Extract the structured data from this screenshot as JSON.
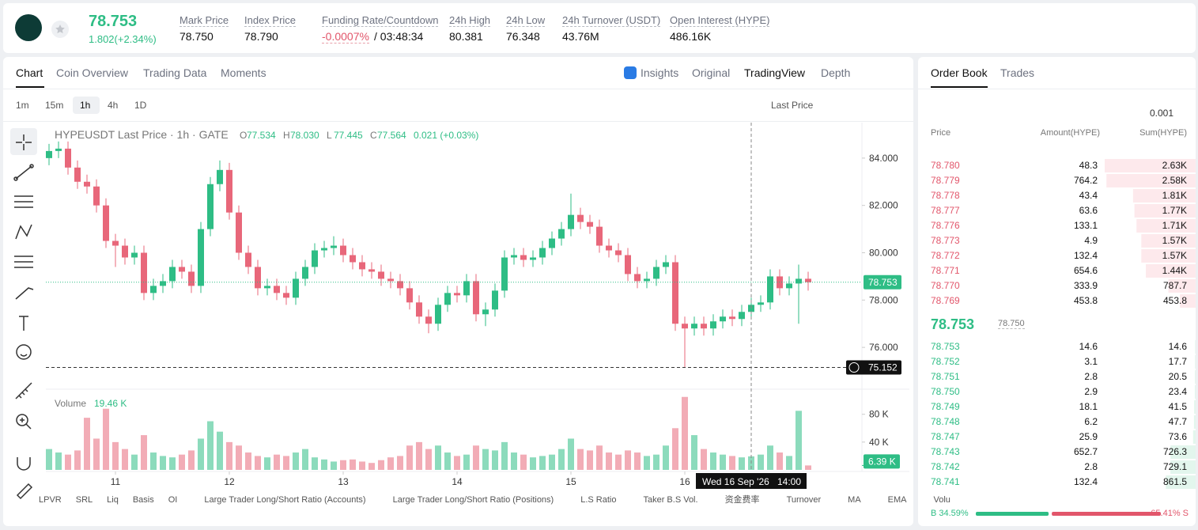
{
  "header": {
    "price": "78.753",
    "change": "1.802(+2.34%)",
    "stats": [
      {
        "label": "Mark Price",
        "value": "78.750"
      },
      {
        "label": "Index Price",
        "value": "78.790"
      },
      {
        "label": "Funding Rate/Countdown",
        "value": "-0.0007%",
        "extra": "/ 03:48:34"
      },
      {
        "label": "24h High",
        "value": "80.381"
      },
      {
        "label": "24h Low",
        "value": "76.348"
      },
      {
        "label": "24h Turnover (USDT)",
        "value": "43.76M"
      },
      {
        "label": "Open Interest (HYPE)",
        "value": "486.16K"
      }
    ]
  },
  "tabs": [
    "Chart",
    "Coin Overview",
    "Trading Data",
    "Moments"
  ],
  "view_tabs": [
    "Insights",
    "Original",
    "TradingView",
    "Depth"
  ],
  "intervals": [
    "1m",
    "15m",
    "1h",
    "4h",
    "1D"
  ],
  "price_type": "Last Price",
  "legend": {
    "title": "HYPEUSDT Last Price · 1h · GATE",
    "ohlc": [
      {
        "k": "O",
        "v": "77.534"
      },
      {
        "k": "H",
        "v": "78.030"
      },
      {
        "k": "L",
        "v": "77.445"
      },
      {
        "k": "C",
        "v": "77.564"
      }
    ],
    "change": "0.021 (+0.03%)"
  },
  "chart_data": {
    "type": "candlestick",
    "colors": {
      "up": "#2ebd85",
      "down": "#e8677a"
    },
    "open": [
      84.0,
      84.3,
      84.4,
      83.6,
      83.0,
      82.8,
      82.0,
      80.5,
      80.3,
      79.8,
      80.0,
      78.3,
      78.6,
      78.8,
      79.4,
      79.2,
      78.6,
      81.0,
      82.9,
      83.5,
      81.7,
      80.0,
      79.4,
      78.5,
      78.6,
      78.3,
      78.1,
      78.9,
      79.4,
      80.1,
      80.2,
      80.3,
      79.9,
      79.6,
      79.3,
      79.2,
      78.9,
      78.8,
      78.5,
      77.9,
      77.3,
      77.0,
      77.8,
      78.3,
      78.2,
      78.8,
      77.4,
      77.6,
      78.4,
      79.8,
      79.9,
      79.7,
      79.8,
      80.2,
      80.6,
      81.0,
      81.6,
      81.3,
      81.1,
      80.3,
      80.1,
      79.9,
      79.1,
      78.8,
      78.9,
      79.4,
      79.6,
      77.0,
      76.8,
      77.0,
      76.8,
      77.1,
      77.3,
      77.2,
      77.5,
      77.8,
      77.9,
      79.0,
      78.5,
      78.7,
      78.9
    ],
    "high": [
      84.6,
      84.7,
      84.7,
      83.9,
      83.3,
      83.1,
      82.3,
      80.8,
      80.6,
      80.3,
      80.3,
      78.9,
      79.1,
      79.7,
      79.7,
      79.5,
      81.3,
      83.2,
      83.9,
      83.8,
      82.0,
      80.3,
      79.7,
      78.9,
      78.9,
      78.6,
      79.2,
      79.7,
      80.4,
      80.5,
      80.7,
      80.6,
      80.2,
      79.9,
      79.6,
      79.5,
      79.2,
      79.1,
      78.8,
      78.2,
      77.6,
      78.1,
      78.6,
      78.6,
      79.1,
      79.1,
      77.9,
      78.7,
      80.1,
      80.2,
      80.2,
      80.1,
      80.5,
      80.9,
      81.3,
      82.5,
      81.9,
      81.6,
      81.4,
      80.6,
      80.4,
      80.2,
      79.4,
      79.2,
      79.7,
      79.9,
      79.9,
      77.3,
      77.3,
      77.3,
      77.4,
      77.6,
      77.6,
      77.8,
      78.1,
      78.2,
      79.3,
      79.3,
      79.0,
      79.5,
      79.2
    ],
    "low": [
      83.7,
      84.0,
      83.3,
      82.7,
      82.5,
      81.7,
      80.2,
      79.4,
      79.5,
      79.5,
      78.0,
      78.0,
      78.3,
      78.5,
      78.9,
      78.3,
      78.3,
      80.7,
      82.6,
      81.4,
      79.7,
      79.1,
      78.2,
      78.2,
      78.0,
      77.8,
      77.8,
      78.6,
      79.1,
      79.8,
      79.9,
      79.6,
      79.3,
      79.0,
      78.9,
      78.6,
      78.5,
      78.2,
      77.6,
      77.0,
      76.6,
      76.7,
      77.5,
      77.9,
      77.9,
      77.1,
      76.9,
      77.3,
      78.1,
      79.5,
      79.4,
      79.4,
      79.5,
      79.9,
      80.3,
      80.7,
      81.0,
      80.8,
      80.0,
      79.8,
      79.6,
      78.8,
      78.5,
      78.5,
      78.6,
      79.1,
      76.7,
      75.152,
      76.5,
      76.5,
      76.5,
      76.8,
      76.9,
      76.9,
      77.2,
      77.5,
      77.6,
      78.2,
      78.2,
      77.0,
      78.4
    ],
    "close": [
      84.3,
      84.4,
      83.6,
      83.0,
      82.8,
      82.0,
      80.5,
      80.3,
      79.8,
      80.0,
      78.3,
      78.6,
      78.8,
      79.4,
      79.2,
      78.6,
      81.0,
      82.9,
      83.5,
      81.7,
      80.0,
      79.4,
      78.5,
      78.6,
      78.3,
      78.1,
      78.9,
      79.4,
      80.1,
      80.2,
      80.3,
      79.9,
      79.6,
      79.3,
      79.2,
      78.9,
      78.8,
      78.5,
      77.9,
      77.3,
      77.0,
      77.8,
      78.3,
      78.2,
      78.8,
      77.4,
      77.6,
      78.4,
      79.8,
      79.9,
      79.7,
      79.8,
      80.2,
      80.6,
      81.0,
      81.6,
      81.3,
      81.1,
      80.3,
      80.1,
      79.9,
      79.1,
      78.8,
      78.9,
      79.4,
      79.6,
      77.0,
      76.8,
      77.0,
      76.8,
      77.1,
      77.3,
      77.2,
      77.5,
      77.8,
      77.9,
      79.0,
      78.5,
      78.7,
      78.9,
      78.753
    ],
    "ylim": [
      74.3,
      85.5
    ],
    "yticks": [
      {
        "value": 76,
        "label": "76.000"
      },
      {
        "value": 78,
        "label": "78.000"
      },
      {
        "value": 80,
        "label": "80.000"
      },
      {
        "value": 82,
        "label": "82.000"
      },
      {
        "value": 84,
        "label": "84.000"
      }
    ],
    "xticks": [
      {
        "value": 7,
        "label": "11"
      },
      {
        "value": 19,
        "label": "12"
      },
      {
        "value": 31,
        "label": "13"
      },
      {
        "value": 43,
        "label": "14"
      },
      {
        "value": 55,
        "label": "15"
      },
      {
        "value": 67,
        "label": "16"
      }
    ],
    "last_price": {
      "value": 78.753,
      "label": "78.753"
    },
    "low_marker": {
      "value": 75.152,
      "label": "75.152"
    },
    "crosshair": {
      "value": 74,
      "date": "Wed 16 Sep '26",
      "time": "14:00"
    },
    "volume": {
      "title": "Volume",
      "current": "19.46 K",
      "values": [
        30000,
        25000,
        22000,
        28000,
        75000,
        45000,
        88000,
        40000,
        30000,
        22000,
        50000,
        25000,
        20000,
        18000,
        22000,
        28000,
        45000,
        70000,
        55000,
        40000,
        35000,
        25000,
        20000,
        18000,
        22000,
        20000,
        25000,
        30000,
        18000,
        15000,
        12000,
        14000,
        15000,
        12000,
        10000,
        14000,
        18000,
        20000,
        35000,
        40000,
        30000,
        35000,
        25000,
        20000,
        22000,
        35000,
        30000,
        28000,
        40000,
        25000,
        22000,
        18000,
        20000,
        22000,
        30000,
        45000,
        30000,
        28000,
        35000,
        25000,
        22000,
        28000,
        25000,
        20000,
        22000,
        35000,
        60000,
        105000,
        50000,
        30000,
        25000,
        22000,
        20000,
        18000,
        19460,
        22000,
        35000,
        25000,
        20000,
        85000,
        6390
      ],
      "ylim": [
        0,
        107000
      ],
      "yticks": [
        {
          "value": 40000,
          "label": "40 K"
        },
        {
          "value": 80000,
          "label": "80 K"
        }
      ],
      "last": {
        "value": 6390,
        "label": "6.39 K"
      }
    }
  },
  "indicators": [
    "LPVR",
    "SRL",
    "Liq",
    "Basis",
    "OI",
    "Large Trader Long/Short Ratio (Accounts)",
    "Large Trader Long/Short Ratio (Positions)",
    "L.S Ratio",
    "Taker B.S Vol.",
    "资金费率",
    "Turnover",
    "MA",
    "EMA",
    "Volu"
  ],
  "order_book": {
    "tabs": [
      "Order Book",
      "Trades"
    ],
    "precision": "0.001",
    "headers": [
      "Price",
      "Amount(HYPE)",
      "Sum(HYPE)"
    ],
    "asks": [
      {
        "price": "78.780",
        "amount": 48.3,
        "sum": {
          "value": 2630,
          "label": "2.63K"
        }
      },
      {
        "price": "78.779",
        "amount": 764.2,
        "sum": {
          "value": 2580,
          "label": "2.58K"
        }
      },
      {
        "price": "78.778",
        "amount": 43.4,
        "sum": {
          "value": 1810,
          "label": "1.81K"
        }
      },
      {
        "price": "78.777",
        "amount": 63.6,
        "sum": {
          "value": 1770,
          "label": "1.77K"
        }
      },
      {
        "price": "78.776",
        "amount": 133.1,
        "sum": {
          "value": 1710,
          "label": "1.71K"
        }
      },
      {
        "price": "78.773",
        "amount": 4.9,
        "sum": {
          "value": 1570,
          "label": "1.57K"
        }
      },
      {
        "price": "78.772",
        "amount": 132.4,
        "sum": {
          "value": 1570,
          "label": "1.57K"
        }
      },
      {
        "price": "78.771",
        "amount": 654.6,
        "sum": {
          "value": 1440,
          "label": "1.44K"
        }
      },
      {
        "price": "78.770",
        "amount": 333.9,
        "sum": 787.7
      },
      {
        "price": "78.769",
        "amount": 453.8,
        "sum": 453.8
      }
    ],
    "last": "78.753",
    "mark": "78.750",
    "bids": [
      {
        "price": "78.753",
        "amount": 14.6,
        "sum": 14.6
      },
      {
        "price": "78.752",
        "amount": 3.1,
        "sum": 17.7
      },
      {
        "price": "78.751",
        "amount": 2.8,
        "sum": 20.5
      },
      {
        "price": "78.750",
        "amount": 2.9,
        "sum": 23.4
      },
      {
        "price": "78.749",
        "amount": 18.1,
        "sum": 41.5
      },
      {
        "price": "78.748",
        "amount": 6.2,
        "sum": 47.7
      },
      {
        "price": "78.747",
        "amount": 25.9,
        "sum": 73.6
      },
      {
        "price": "78.743",
        "amount": 652.7,
        "sum": 726.3
      },
      {
        "price": "78.742",
        "amount": 2.8,
        "sum": 729.1
      },
      {
        "price": "78.741",
        "amount": 132.4,
        "sum": 861.5
      }
    ],
    "buy": {
      "value": 34.59,
      "label": "B 34.59%"
    },
    "sell": {
      "value": 65.41,
      "label": "65.41% S"
    }
  }
}
